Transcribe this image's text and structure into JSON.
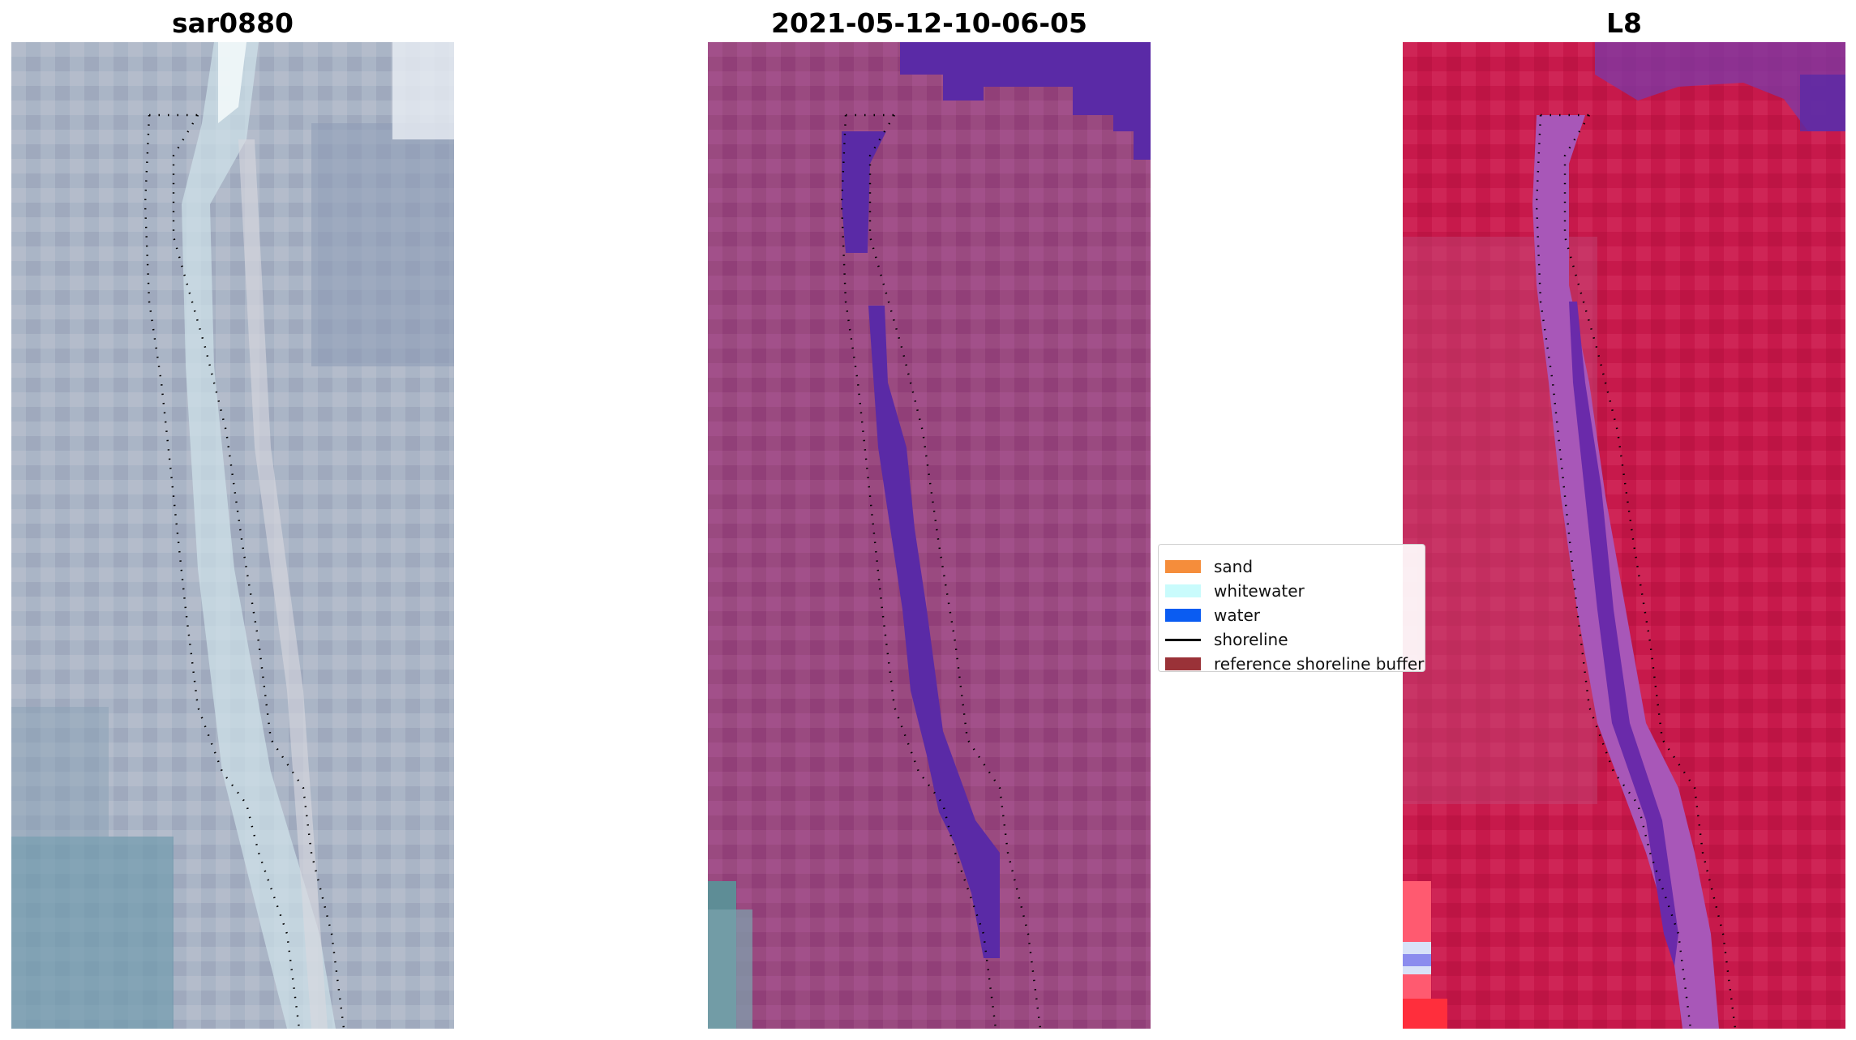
{
  "panels": [
    {
      "title": "sar0880",
      "image": "rgb-composite"
    },
    {
      "title": "2021-05-12-10-06-05",
      "image": "classified-image"
    },
    {
      "title": "L8",
      "image": "false-color-composite"
    }
  ],
  "legend": {
    "items": [
      {
        "label": "sand",
        "color": "#f58d3b",
        "kind": "patch"
      },
      {
        "label": "whitewater",
        "color": "#c9fbfc",
        "kind": "patch"
      },
      {
        "label": "water",
        "color": "#0a5cf2",
        "kind": "patch"
      },
      {
        "label": "shoreline",
        "color": "#000000",
        "kind": "line"
      },
      {
        "label": "reference shoreline buffer",
        "color": "#9a3238",
        "kind": "patch"
      }
    ]
  },
  "colors": {
    "rgb_base": "#a9b4c6",
    "rgb_teal": "#6e9bab",
    "rgb_white": "#e6eef2",
    "class_base": "#9b4a80",
    "class_water": "#5a2aa6",
    "l8_base": "#c8184a",
    "l8_river": "#a857b8",
    "l8_purple": "#6a2aaa",
    "shoreline_dots": "#000000"
  }
}
